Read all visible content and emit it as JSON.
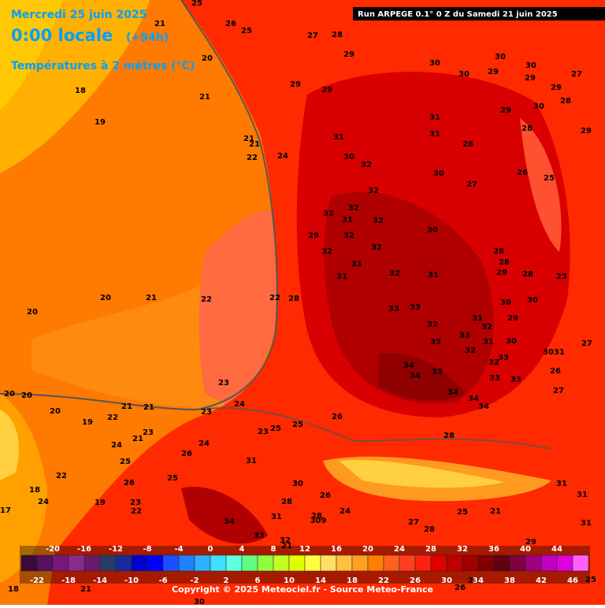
{
  "header": {
    "date": "Mercredi 25 juin 2025",
    "time": "0:00 locale",
    "lead": "(+94h)",
    "variable": "Températures à 2 mètres (°C)",
    "run": "Run ARPEGE 0.1° 0 Z du Samedi 21 juin 2025"
  },
  "map_labels": [
    "25",
    "21",
    "26",
    "25",
    "27",
    "28",
    "29",
    "20",
    "18",
    "21",
    "19",
    "29",
    "29",
    "30",
    "30",
    "30",
    "29",
    "30",
    "29",
    "27",
    "29",
    "28",
    "30",
    "29",
    "31",
    "31",
    "31",
    "28",
    "28",
    "29",
    "21",
    "21",
    "24",
    "22",
    "30",
    "32",
    "30",
    "27",
    "26",
    "25",
    "32",
    "32",
    "32",
    "31",
    "32",
    "29",
    "30",
    "32",
    "32",
    "32",
    "31",
    "31",
    "32",
    "31",
    "28",
    "28",
    "29",
    "28",
    "23",
    "20",
    "21",
    "22",
    "22",
    "28",
    "30",
    "30",
    "20",
    "33",
    "33",
    "31",
    "29",
    "32",
    "32",
    "33",
    "33",
    "31",
    "30",
    "32",
    "33",
    "30",
    "31",
    "27",
    "34",
    "34",
    "33",
    "32",
    "33",
    "33",
    "26",
    "23",
    "34",
    "34",
    "34",
    "27",
    "20",
    "20",
    "21",
    "21",
    "24",
    "23",
    "26",
    "20",
    "22",
    "19",
    "23",
    "21",
    "25",
    "25",
    "23",
    "28",
    "24",
    "24",
    "26",
    "31",
    "25",
    "22",
    "25",
    "26",
    "30",
    "31",
    "18",
    "26",
    "19",
    "24",
    "23",
    "28",
    "31",
    "22",
    "34",
    "31",
    "17",
    "33",
    "28",
    "309",
    "24",
    "27",
    "25",
    "21",
    "32",
    "21",
    "28",
    "29",
    "31",
    "18",
    "21",
    "30",
    "26",
    "25",
    "25"
  ],
  "colorbar": {
    "colors": [
      "#3a0a3a",
      "#5a1060",
      "#781878",
      "#8c2a8c",
      "#6a1a6a",
      "#2a3a6a",
      "#1a2a9a",
      "#0000cc",
      "#0000ff",
      "#1a50ff",
      "#2080ff",
      "#30b0ff",
      "#40e0ff",
      "#60ffe0",
      "#60ff80",
      "#90ff40",
      "#c0ff20",
      "#e0ff00",
      "#ffff40",
      "#ffe060",
      "#ffc040",
      "#ffa020",
      "#ff8000",
      "#ff6020",
      "#ff4020",
      "#ff2010",
      "#e00000",
      "#c00000",
      "#a00000",
      "#800000",
      "#600010",
      "#800040",
      "#a00080",
      "#c000c0",
      "#e000e0",
      "#ff60ff"
    ],
    "labels_top": [
      "-20",
      "-16",
      "-12",
      "-8",
      "-4",
      "0",
      "4",
      "8",
      "12",
      "16",
      "20",
      "24",
      "28",
      "32",
      "36",
      "40",
      "44"
    ],
    "labels_bottom": [
      "-22",
      "-18",
      "-14",
      "-10",
      "-6",
      "-2",
      "2",
      "6",
      "10",
      "14",
      "18",
      "22",
      "26",
      "30",
      "34",
      "38",
      "42",
      "46"
    ]
  },
  "footer": "Copyright © 2025 Meteociel.fr - Source Meteo-France"
}
